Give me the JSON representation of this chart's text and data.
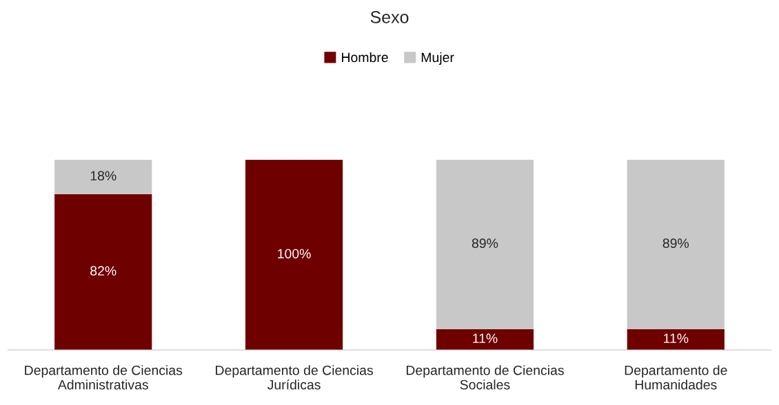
{
  "chart_data": {
    "type": "bar",
    "title": "Sexo",
    "stacked": true,
    "legend": "top",
    "grid": false,
    "tick_labels": "x",
    "categories": [
      "Departamento de Ciencias Administrativas",
      "Departamento de Ciencias Jurídicas",
      "Departamento de Ciencias Sociales",
      "Departamento de Humanidades"
    ],
    "series": [
      {
        "name": "Hombre",
        "color": "#6e0000",
        "values": [
          82,
          100,
          11,
          11
        ],
        "value_labels": [
          "82%",
          "100%",
          "11%",
          "11%"
        ]
      },
      {
        "name": "Mujer",
        "color": "#c8c8c8",
        "values": [
          18,
          0,
          89,
          89
        ],
        "value_labels": [
          "18%",
          null,
          "89%",
          "89%"
        ]
      }
    ]
  }
}
